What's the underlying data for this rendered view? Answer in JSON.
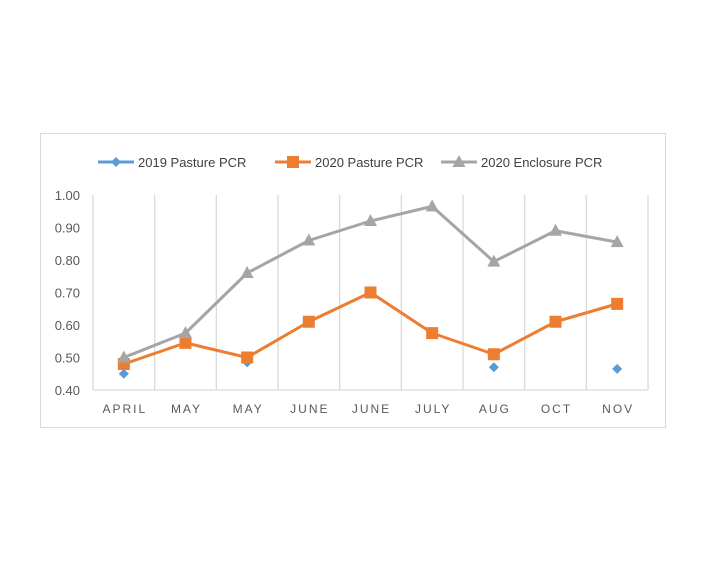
{
  "chart_data": {
    "type": "line",
    "title": "",
    "xlabel": "",
    "ylabel": "",
    "categories": [
      "APRIL",
      "MAY",
      "MAY",
      "JUNE",
      "JUNE",
      "JULY",
      "AUG",
      "OCT",
      "NOV"
    ],
    "ylim": [
      0.4,
      1.0
    ],
    "yticks": [
      "0.40",
      "0.50",
      "0.60",
      "0.70",
      "0.80",
      "0.90",
      "1.00"
    ],
    "grid": "vertical",
    "legend_position": "top",
    "series": [
      {
        "name": "2019 Pasture PCR",
        "color": "#5b9bd5",
        "marker": "diamond",
        "line": false,
        "values": [
          0.45,
          null,
          0.485,
          null,
          null,
          null,
          0.47,
          null,
          0.465
        ]
      },
      {
        "name": "2020 Pasture PCR",
        "color": "#ed7d31",
        "marker": "square",
        "line": true,
        "values": [
          0.48,
          0.545,
          0.5,
          0.61,
          0.7,
          0.575,
          0.51,
          0.61,
          0.665
        ]
      },
      {
        "name": "2020 Enclosure PCR",
        "color": "#a5a5a5",
        "marker": "triangle",
        "line": true,
        "values": [
          0.5,
          0.575,
          0.76,
          0.86,
          0.92,
          0.965,
          0.795,
          0.89,
          0.855
        ]
      }
    ]
  }
}
